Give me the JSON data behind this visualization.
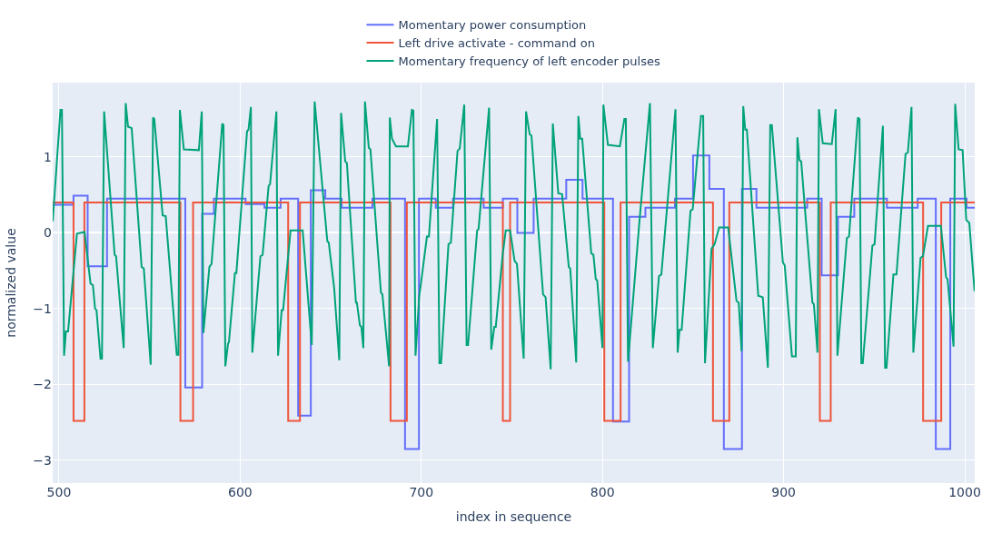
{
  "chart_data": {
    "type": "line",
    "xlabel": "index in sequence",
    "ylabel": "normalized value",
    "xlim": [
      496.5,
      1005.5
    ],
    "ylim": [
      -3.3,
      1.98
    ],
    "xticks": [
      500,
      600,
      700,
      800,
      900,
      1000
    ],
    "yticks": [
      {
        "value": -3,
        "label": "−3"
      },
      {
        "value": -2,
        "label": "−2"
      },
      {
        "value": -1,
        "label": "−1"
      },
      0,
      1
    ],
    "grid": true,
    "legend": "top",
    "line_style": "solid",
    "series": [
      {
        "name": "Momentary power consumption",
        "type": "step",
        "color": "#636efa",
        "x": [
          496.5,
          508,
          515.8,
          526.5,
          569.7,
          579,
          585.5,
          603,
          613.4,
          622.3,
          632,
          639,
          647,
          656,
          673,
          691,
          698.7,
          708,
          717.5,
          734.4,
          745,
          753,
          762,
          780,
          789,
          805.8,
          814.7,
          823.7,
          840,
          850,
          859,
          867,
          877,
          885,
          913,
          921,
          930,
          939,
          957,
          974,
          984,
          992,
          1001,
          1005.5
        ],
        "values": [
          0.37,
          0.49,
          -0.44,
          0.45,
          -2.04,
          0.25,
          0.45,
          0.38,
          0.33,
          0.45,
          -2.41,
          0.56,
          0.45,
          0.33,
          0.45,
          -2.85,
          0.45,
          0.33,
          0.45,
          0.33,
          0.45,
          0,
          0.45,
          0.7,
          0.45,
          -2.49,
          0.21,
          0.33,
          0.45,
          1.02,
          0.58,
          -2.85,
          0.58,
          0.33,
          0.45,
          -0.56,
          0.21,
          0.45,
          0.33,
          0.45,
          -2.85,
          0.45,
          0.33,
          0.33
        ]
      },
      {
        "name": "Left drive activate - command on",
        "type": "step",
        "color": "#ef553b",
        "x": [
          496.5,
          508,
          514,
          567,
          574,
          626.5,
          633,
          683,
          692,
          745,
          749,
          801,
          810,
          861,
          870,
          920,
          926,
          977,
          987,
          1005.5
        ],
        "values": [
          0.4,
          -2.48,
          0.4,
          -2.48,
          0.4,
          -2.48,
          0.4,
          -2.48,
          0.4,
          -2.48,
          0.4,
          -2.48,
          0.4,
          -2.48,
          0.4,
          -2.48,
          0.4,
          -2.48,
          0.4,
          0.4
        ]
      },
      {
        "name": "Momentary frequency of left encoder pulses",
        "color": "#00a27a",
        "x": [
          496.5,
          500.8,
          501.6,
          502.8,
          503.8,
          505,
          509.9,
          514.1,
          517.4,
          518.7,
          519.9,
          520.7,
          522.9,
          523.7,
          524.9,
          530.7,
          531.5,
          535.7,
          536.8,
          538.1,
          540.1,
          545.6,
          546.8,
          550.6,
          551.9,
          552.6,
          557.2,
          558.9,
          565,
          565.9,
          566.7,
          568.9,
          577.2,
          578.8,
          579.7,
          583,
          584.2,
          590.1,
          590.8,
          591.8,
          593.3,
          593.8,
          597.1,
          597.9,
          603.8,
          604.6,
          605.9,
          606.7,
          610.1,
          611.2,
          612.4,
          615.7,
          616.5,
          620,
          620.9,
          622.9,
          623.7,
          627.8,
          634.5,
          639.5,
          641.1,
          648.1,
          648.9,
          651.9,
          654.7,
          655.7,
          658,
          658.9,
          663.9,
          664.4,
          666.1,
          666.9,
          668,
          668.9,
          671,
          671.9,
          677.7,
          678.5,
          682.2,
          682.6,
          683.8,
          686,
          692.6,
          694.8,
          695.6,
          696.8,
          698.8,
          703.1,
          704.2,
          708.7,
          710,
          710.9,
          715,
          716.3,
          720,
          721.2,
          723.7,
          725,
          725.8,
          730.8,
          731.6,
          737.4,
          738.6,
          740.3,
          741.1,
          744.9,
          746.6,
          749,
          751.5,
          752.8,
          756.5,
          757.8,
          759.8,
          760.8,
          767.2,
          768.6,
          771.4,
          772.6,
          775.6,
          777.7,
          781.4,
          782.2,
          785.5,
          786.7,
          787.7,
          788.8,
          793.8,
          795,
          796.3,
          797.1,
          800,
          800.5,
          803,
          809.6,
          812.1,
          812.9,
          814.1,
          820.4,
          826.2,
          827.8,
          831.2,
          832.5,
          840.3,
          841.5,
          842.5,
          843.7,
          848.6,
          849.8,
          854.4,
          855.6,
          856.6,
          860.2,
          861.9,
          864.4,
          869.4,
          874,
          875.2,
          876.8,
          877.7,
          878.8,
          879.7,
          886,
          888.5,
          891.3,
          892.6,
          893.5,
          899.6,
          900.6,
          904.6,
          906.7,
          907.6,
          908.7,
          909.7,
          915.9,
          916.7,
          918.7,
          919.5,
          921.6,
          926.6,
          928.7,
          929.7,
          934.9,
          936.1,
          941,
          941.9,
          942.9,
          943.7,
          949,
          950.2,
          954.8,
          956,
          956.8,
          960.6,
          962.3,
          967.3,
          968.6,
          970.6,
          971.6,
          975.6,
          976.9,
          979.7,
          986.8,
          989.7,
          990.5,
          993.8,
          994.7,
          996.6,
          998.8,
          1000.8,
          1002.5,
          1005.4
        ],
        "values": [
          0.15,
          1.62,
          1.62,
          -1.62,
          -1.3,
          -1.3,
          -0.01,
          0.01,
          -0.67,
          -0.69,
          -1.0,
          -1.02,
          -1.66,
          -1.66,
          1.6,
          -0.29,
          -0.31,
          -1.52,
          1.71,
          1.4,
          1.38,
          -0.45,
          -0.47,
          -1.74,
          1.52,
          1.5,
          0.23,
          0.22,
          -1.61,
          -1.61,
          1.62,
          1.1,
          1.09,
          1.6,
          -1.32,
          -0.45,
          -0.41,
          1.44,
          1.42,
          -1.76,
          -1.46,
          -1.44,
          -0.53,
          -0.53,
          1.34,
          1.36,
          1.66,
          -1.58,
          -0.61,
          -0.31,
          -0.29,
          0.62,
          0.64,
          1.6,
          -1.62,
          -1.02,
          -1.02,
          0.03,
          0.03,
          -1.48,
          1.73,
          -0.11,
          -0.13,
          -0.73,
          -1.68,
          1.58,
          0.94,
          0.92,
          -0.92,
          -0.92,
          -1.22,
          -1.24,
          -1.52,
          1.73,
          1.12,
          1.1,
          -0.79,
          -0.81,
          -1.76,
          1.52,
          1.24,
          1.14,
          1.14,
          1.62,
          1.61,
          -1.62,
          -0.85,
          -0.05,
          -0.05,
          1.5,
          -1.72,
          -1.72,
          -0.15,
          -0.13,
          1.08,
          1.11,
          1.69,
          -1.48,
          -1.48,
          0.03,
          0.05,
          1.65,
          -1.54,
          -1.24,
          -1.24,
          -0.29,
          0.03,
          0.03,
          -0.37,
          -0.41,
          -1.66,
          1.6,
          1.3,
          1.28,
          -0.81,
          -0.85,
          -1.8,
          1.44,
          0.52,
          0.51,
          -0.45,
          -0.47,
          -1.71,
          1.54,
          1.24,
          1.24,
          -0.27,
          -0.29,
          -0.61,
          -0.63,
          -1.52,
          1.69,
          1.16,
          1.14,
          1.5,
          1.5,
          -1.7,
          0.15,
          1.71,
          -1.52,
          -0.57,
          -0.55,
          1.63,
          -1.58,
          -1.28,
          -1.28,
          0.29,
          0.31,
          1.54,
          1.54,
          -1.72,
          -0.21,
          -0.15,
          0.07,
          0.07,
          -0.9,
          -0.92,
          -1.56,
          1.67,
          1.36,
          1.36,
          -0.83,
          -0.85,
          -1.78,
          1.42,
          1.42,
          -0.39,
          -0.43,
          -1.63,
          -1.63,
          1.26,
          0.96,
          0.94,
          -0.92,
          -0.94,
          -1.58,
          1.63,
          1.18,
          1.17,
          1.63,
          -1.62,
          -0.07,
          -0.05,
          1.52,
          1.5,
          -1.72,
          -1.72,
          -0.17,
          -0.15,
          1.41,
          -1.78,
          -1.78,
          -0.55,
          -0.55,
          1.04,
          1.06,
          1.66,
          -1.58,
          -0.33,
          -0.31,
          0.09,
          0.09,
          -0.59,
          -0.61,
          -1.5,
          1.7,
          1.1,
          1.09,
          0.17,
          0.13,
          -0.77
        ]
      }
    ]
  }
}
